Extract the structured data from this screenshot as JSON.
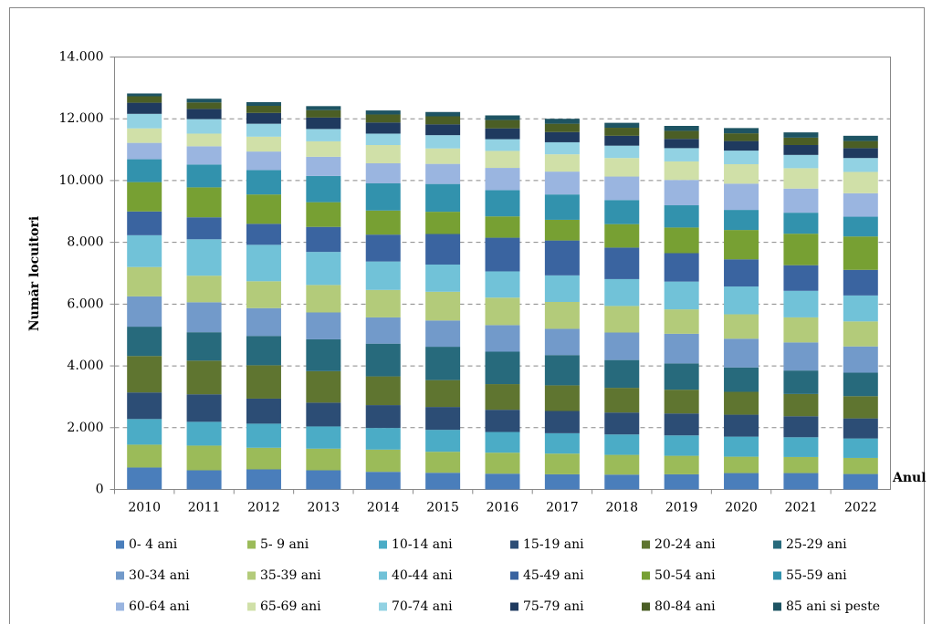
{
  "chart_data": {
    "type": "stacked_bar",
    "y_label": "Număr locuitori",
    "x_label": "Anul",
    "categories": [
      "2010",
      "2011",
      "2012",
      "2013",
      "2014",
      "2015",
      "2016",
      "2017",
      "2018",
      "2019",
      "2020",
      "2021",
      "2022"
    ],
    "ylim": [
      0,
      14000
    ],
    "yticks": [
      0,
      {
        "value": 2000,
        "label": "2.000"
      },
      {
        "value": 4000,
        "label": "4.000"
      },
      {
        "value": 6000,
        "label": "6.000"
      },
      {
        "value": 8000,
        "label": "8.000"
      },
      {
        "value": 10000,
        "label": "10.000"
      },
      {
        "value": 12000,
        "label": "12.000"
      },
      {
        "value": 14000,
        "label": "14.000"
      }
    ],
    "grid": true,
    "legend": "bottom",
    "series": [
      {
        "name": "0- 4 ani",
        "color": "#4a7ebb",
        "values": [
          710,
          620,
          650,
          620,
          570,
          540,
          510,
          490,
          480,
          490,
          530,
          530,
          500
        ]
      },
      {
        "name": "5- 9 ani",
        "color": "#9bbb59",
        "values": [
          740,
          800,
          700,
          700,
          720,
          680,
          680,
          670,
          640,
          600,
          530,
          520,
          520
        ]
      },
      {
        "name": "10-14 ani",
        "color": "#4bacc6",
        "values": [
          830,
          770,
          780,
          720,
          700,
          710,
          670,
          660,
          660,
          660,
          650,
          640,
          630
        ]
      },
      {
        "name": "15-19 ani",
        "color": "#2c4d75",
        "values": [
          860,
          890,
          810,
          770,
          740,
          740,
          720,
          720,
          710,
          710,
          710,
          680,
          650
        ]
      },
      {
        "name": "20-24 ani",
        "color": "#5f7530",
        "values": [
          1180,
          1090,
          1080,
          1020,
          930,
          870,
          830,
          830,
          800,
          770,
          740,
          720,
          720
        ]
      },
      {
        "name": "25-29 ani",
        "color": "#276a7c",
        "values": [
          950,
          920,
          950,
          1030,
          1060,
          1080,
          1050,
          980,
          900,
          850,
          790,
          760,
          760
        ]
      },
      {
        "name": "30-34 ani",
        "color": "#729aca",
        "values": [
          980,
          970,
          900,
          870,
          850,
          850,
          860,
          850,
          890,
          960,
          930,
          910,
          850
        ]
      },
      {
        "name": "35-39 ani",
        "color": "#b3cb7a",
        "values": [
          950,
          860,
          870,
          890,
          890,
          930,
          890,
          870,
          860,
          790,
          790,
          810,
          810
        ]
      },
      {
        "name": "40-44 ani",
        "color": "#71c2d8",
        "values": [
          1030,
          1180,
          1180,
          1070,
          920,
          880,
          850,
          860,
          870,
          900,
          900,
          860,
          840
        ]
      },
      {
        "name": "45-49 ani",
        "color": "#3a64a0",
        "values": [
          770,
          710,
          680,
          810,
          870,
          990,
          1090,
          1130,
          1020,
          920,
          880,
          830,
          830
        ]
      },
      {
        "name": "50-54 ani",
        "color": "#77a033",
        "values": [
          950,
          970,
          950,
          800,
          780,
          720,
          690,
          670,
          760,
          830,
          950,
          1020,
          1080
        ]
      },
      {
        "name": "55-59 ani",
        "color": "#3292ad",
        "values": [
          740,
          740,
          790,
          850,
          880,
          900,
          850,
          820,
          780,
          720,
          650,
          680,
          640
        ]
      },
      {
        "name": "60-64 ani",
        "color": "#9ab5e0",
        "values": [
          530,
          590,
          600,
          620,
          650,
          650,
          720,
          740,
          760,
          820,
          850,
          780,
          760
        ]
      },
      {
        "name": "65-69 ani",
        "color": "#d0e0a8",
        "values": [
          470,
          410,
          480,
          500,
          590,
          500,
          550,
          560,
          600,
          600,
          630,
          660,
          690
        ]
      },
      {
        "name": "70-74 ani",
        "color": "#92d2e3",
        "values": [
          470,
          470,
          420,
          400,
          370,
          430,
          380,
          390,
          400,
          430,
          440,
          430,
          450
        ]
      },
      {
        "name": "75-79 ani",
        "color": "#1f3a5f",
        "values": [
          360,
          330,
          350,
          370,
          360,
          350,
          350,
          330,
          320,
          300,
          310,
          320,
          320
        ]
      },
      {
        "name": "80-84 ani",
        "color": "#4b5e25",
        "values": [
          210,
          210,
          230,
          240,
          260,
          260,
          270,
          270,
          260,
          260,
          250,
          240,
          230
        ]
      },
      {
        "name": "85 ani si peste",
        "color": "#1e5463",
        "values": [
          90,
          120,
          120,
          130,
          130,
          140,
          150,
          160,
          160,
          160,
          170,
          170,
          170
        ]
      }
    ]
  }
}
